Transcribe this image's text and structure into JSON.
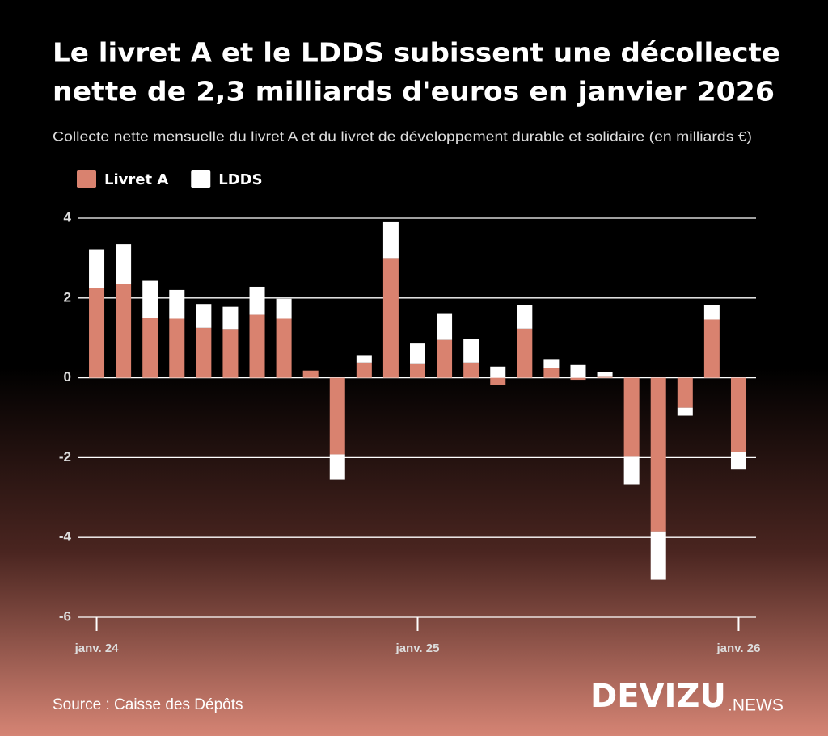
{
  "chart_data": {
    "type": "stacked-bar",
    "title": [
      "Le livret A et le LDDS subissent une décollecte",
      "nette de 2,3 milliards d'euros en janvier 2026"
    ],
    "subtitle": "Collecte nette mensuelle du livret A et du livret de développement durable et solidaire (en milliards €)",
    "categories": [
      "janv. 24",
      null,
      null,
      null,
      null,
      null,
      null,
      null,
      null,
      null,
      null,
      null,
      "janv. 25",
      null,
      null,
      null,
      null,
      null,
      null,
      null,
      null,
      null,
      null,
      null,
      "janv. 26"
    ],
    "series": [
      {
        "name": "Livret A",
        "color": "#d9826f",
        "values": [
          2.25,
          2.35,
          1.5,
          1.48,
          1.25,
          1.22,
          1.58,
          1.48,
          0.18,
          -1.92,
          0.38,
          3.0,
          0.36,
          0.95,
          0.38,
          -0.18,
          1.23,
          0.24,
          -0.05,
          0.02,
          -1.98,
          -3.85,
          -0.75,
          1.46,
          -1.85
        ]
      },
      {
        "name": "LDDS",
        "color": "#ffffff",
        "values": [
          0.97,
          1.0,
          0.93,
          0.72,
          0.6,
          0.56,
          0.7,
          0.5,
          0.0,
          -0.63,
          0.17,
          0.9,
          0.5,
          0.65,
          0.6,
          0.28,
          0.6,
          0.23,
          0.32,
          0.13,
          -0.69,
          -1.21,
          -0.2,
          0.36,
          -0.45
        ]
      }
    ],
    "ylim": [
      -6,
      4
    ],
    "yticks": [
      -6,
      -4,
      -2,
      0,
      2,
      4
    ],
    "grid": true,
    "legend": "top-left",
    "source": "Source : Caisse des Dépôts",
    "logo": [
      "DEVIZU",
      ".NEWS"
    ]
  }
}
